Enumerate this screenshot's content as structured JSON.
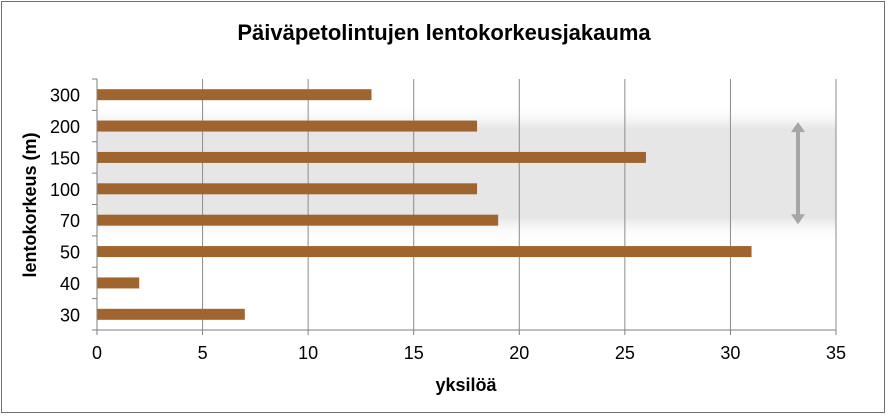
{
  "chart_data": {
    "type": "bar",
    "orientation": "horizontal",
    "title": "Päiväpetolintujen lentokorkeusjakauma",
    "xlabel": "yksilöä",
    "ylabel": "lentokorkeus (m)",
    "categories": [
      "300",
      "200",
      "150",
      "100",
      "70",
      "50",
      "40",
      "30"
    ],
    "values": [
      13,
      18,
      26,
      18,
      19,
      31,
      2,
      7
    ],
    "xlim": [
      0,
      35
    ],
    "xticks": [
      0,
      5,
      10,
      15,
      20,
      25,
      30,
      35
    ],
    "grid": "vertical",
    "legend": "none",
    "colors": {
      "bar": "#A0652E",
      "grid": "#8c8c8c",
      "band": "#d9d9d9",
      "arrow": "#a6a6a6"
    }
  },
  "annotation": {
    "type": "double-arrow",
    "spans": [
      "200",
      "70"
    ]
  }
}
